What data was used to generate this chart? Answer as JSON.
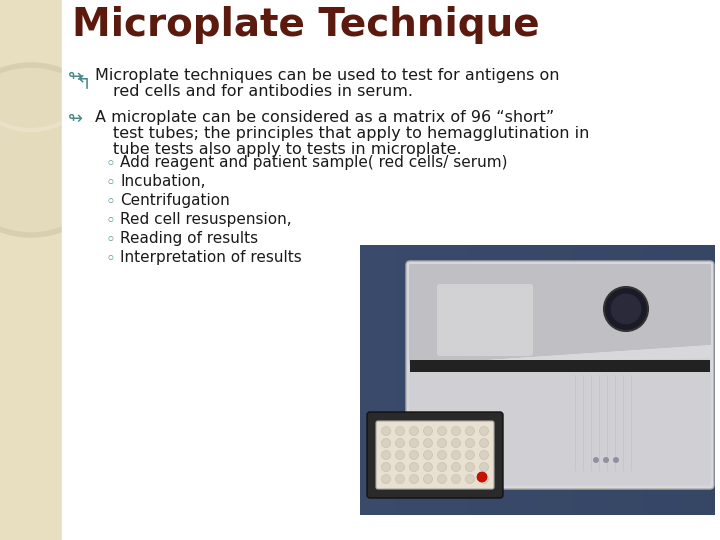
{
  "title": "Microplate Technique",
  "title_color": "#5C1A0E",
  "title_fontsize": 28,
  "bg_color": "#FFFFFF",
  "left_bar_color": "#E8DFC0",
  "bullet_color": "#4A8A8A",
  "bullet_fontsize": 11.5,
  "bullet1_line1": "Microplate techniques can be used to test for antigens on",
  "bullet1_line2": "red cells and for antibodies in serum.",
  "bullet2_line1": "A microplate can be considered as a matrix of 96 “short”",
  "bullet2_line2": "test tubes; the principles that apply to hemagglutination in",
  "bullet2_line3": "tube tests also apply to tests in microplate.",
  "sub_bullets": [
    "Add reagent and patient sample( red cells/ serum)",
    "Incubation,",
    "Centrifugation",
    "Red cell resuspension,",
    "Reading of results",
    "Interpretation of results"
  ],
  "sub_bullet_symbol": "◦",
  "sub_bullet_color": "#4A8A8A",
  "sub_bullet_fontsize": 11,
  "text_color": "#1A1A1A"
}
